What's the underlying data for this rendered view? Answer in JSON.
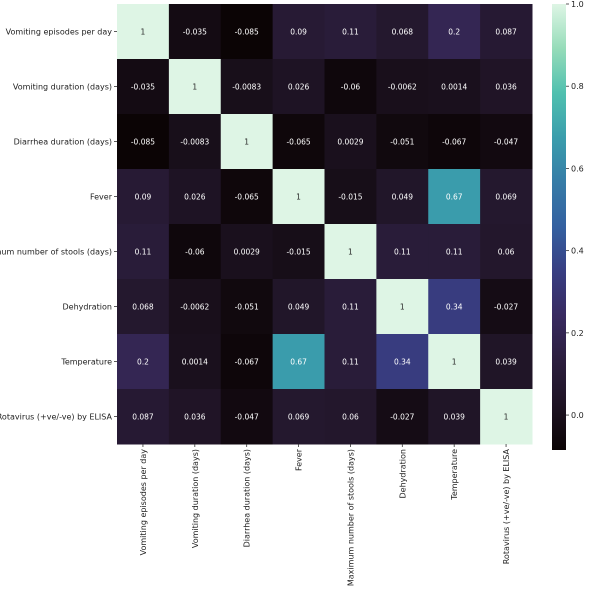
{
  "chart_data": {
    "type": "heatmap",
    "title": "",
    "labels": [
      "Vomiting episodes per day",
      "Vomiting duration (days)",
      "Diarrhea duration (days)",
      "Fever",
      "Maximum number of stools (days)",
      "Dehydration",
      "Temperature",
      "Rotavirus (+ve/-ve) by ELISA"
    ],
    "matrix": [
      [
        1,
        -0.035,
        -0.085,
        0.09,
        0.11,
        0.068,
        0.2,
        0.087
      ],
      [
        -0.035,
        1,
        -0.0083,
        0.026,
        -0.06,
        -0.0062,
        0.0014,
        0.036
      ],
      [
        -0.085,
        -0.0083,
        1,
        -0.065,
        0.0029,
        -0.051,
        -0.067,
        -0.047
      ],
      [
        0.09,
        0.026,
        -0.065,
        1,
        -0.015,
        0.049,
        0.67,
        0.069
      ],
      [
        0.11,
        -0.06,
        0.0029,
        -0.015,
        1,
        0.11,
        0.11,
        0.06
      ],
      [
        0.068,
        -0.0062,
        -0.051,
        0.049,
        0.11,
        1,
        0.34,
        -0.027
      ],
      [
        0.2,
        0.0014,
        -0.067,
        0.67,
        0.11,
        0.34,
        1,
        0.039
      ],
      [
        0.087,
        0.036,
        -0.047,
        0.069,
        0.06,
        -0.027,
        0.039,
        1
      ]
    ],
    "colorbar": {
      "vmin": -0.085,
      "vmax": 1.0,
      "ticks": [
        "0.0",
        "0.2",
        "0.4",
        "0.6",
        "0.8",
        "1.0"
      ],
      "colormap": "mako"
    }
  }
}
